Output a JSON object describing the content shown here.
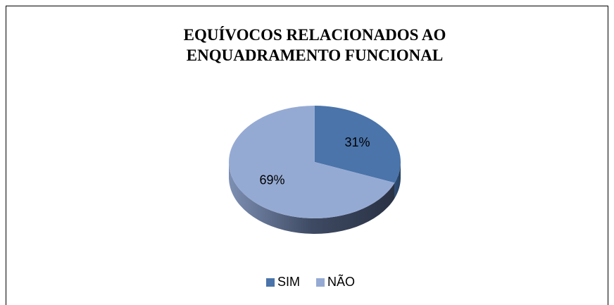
{
  "chart_data": {
    "type": "pie",
    "title": "EQUÍVOCOS RELACIONADOS AO ENQUADRAMENTO FUNCIONAL",
    "categories": [
      "SIM",
      "NÃO"
    ],
    "values": [
      31,
      69
    ],
    "value_labels": [
      "31%",
      "69%"
    ],
    "colors": [
      "#4a74aa",
      "#95aad3"
    ],
    "legend": "bottom"
  }
}
